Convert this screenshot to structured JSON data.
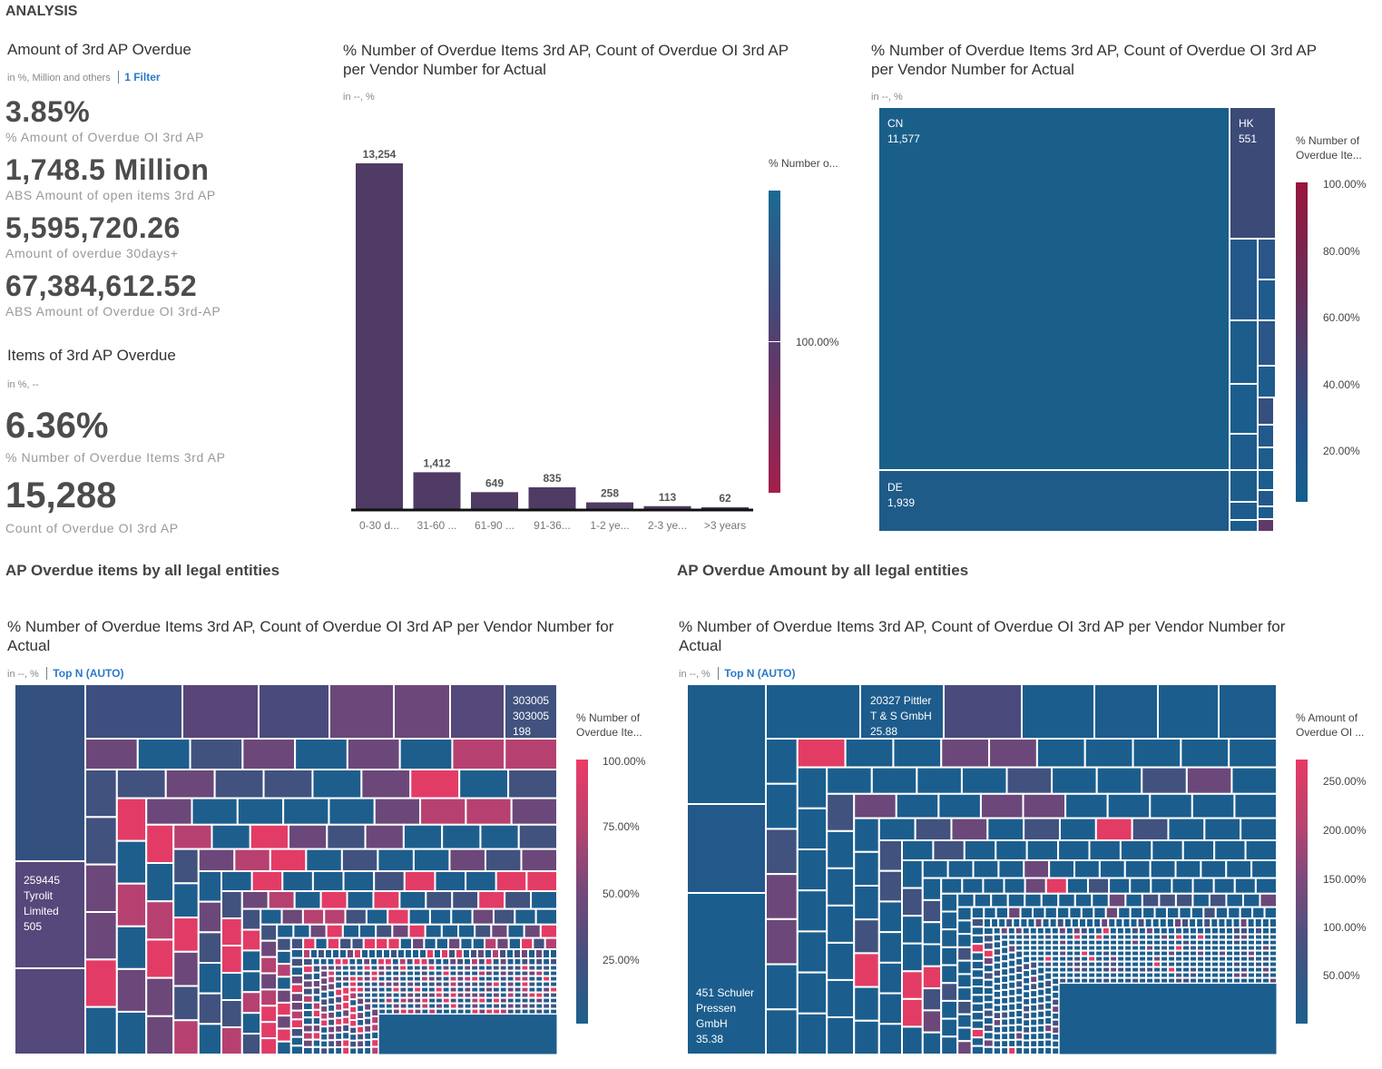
{
  "page": {
    "title": "ANALYSIS"
  },
  "amount_kpi": {
    "title": "Amount of 3rd AP Overdue",
    "subtitle": "in %, Million and others",
    "filter": "1 Filter",
    "items": [
      {
        "value": "3.85%",
        "label": "% Amount of Overdue OI 3rd AP"
      },
      {
        "value": "1,748.5 Million",
        "label": "ABS Amount of open items 3rd AP"
      },
      {
        "value": "5,595,720.26",
        "label": "Amount of overdue 30days+"
      },
      {
        "value": "67,384,612.52",
        "label": "ABS Amount of Overdue OI 3rd-AP"
      }
    ]
  },
  "items_kpi": {
    "title": "Items of 3rd AP Overdue",
    "subtitle": "in %, --",
    "items": [
      {
        "value": "6.36%",
        "label": "% Number of Overdue Items 3rd AP"
      },
      {
        "value": "15,288",
        "label": "Count of Overdue OI 3rd AP"
      }
    ]
  },
  "bar_panel": {
    "title": "% Number of Overdue Items 3rd AP, Count of Overdue OI 3rd AP per Vendor Number for Actual",
    "subtitle": "in --, %",
    "legend_title": "% Number o...",
    "legend_tick": "100.00%"
  },
  "country_panel": {
    "title": "% Number of Overdue Items 3rd AP, Count of Overdue OI 3rd AP per Vendor Number for Actual",
    "subtitle": "in --, %",
    "legend_title": "% Number of Overdue Ite...",
    "legend_ticks": [
      "100.00%",
      "80.00%",
      "60.00%",
      "40.00%",
      "20.00%"
    ]
  },
  "items_section": {
    "title": "AP Overdue items by all legal entities"
  },
  "amount_section": {
    "title": "AP Overdue Amount by all legal entities"
  },
  "items_treemap_panel": {
    "title": "% Number of Overdue Items 3rd AP, Count of Overdue OI 3rd AP per Vendor Number for Actual",
    "subtitle": "in --, %",
    "topn": "Top N (AUTO)",
    "legend_title": "% Number of Overdue Ite...",
    "legend_ticks": [
      "100.00%",
      "75.00%",
      "50.00%",
      "25.00%"
    ],
    "label_big": [
      "259445",
      "Tyrolit",
      "Limited",
      "505"
    ],
    "label_top": [
      "303005",
      "303005",
      "198"
    ]
  },
  "amount_treemap_panel": {
    "title": "% Number of Overdue Items 3rd AP, Count of Overdue OI 3rd AP per Vendor Number for Actual",
    "subtitle": "in --, %",
    "topn": "Top N (AUTO)",
    "legend_title": "% Amount of Overdue OI ...",
    "legend_ticks": [
      "250.00%",
      "200.00%",
      "150.00%",
      "100.00%",
      "50.00%"
    ],
    "label_big": [
      "451 Schuler",
      "Pressen",
      "GmbH",
      "35.38"
    ],
    "label_top": [
      "20327 Pittler",
      "T & S GmbH",
      "25.88"
    ]
  },
  "chart_data": [
    {
      "type": "bar",
      "title": "% Number of Overdue Items 3rd AP, Count of Overdue OI 3rd AP per Vendor Number for Actual",
      "categories": [
        "0-30 d...",
        "31-60 ...",
        "61-90 ...",
        "91-36...",
        "1-2 ye...",
        "2-3 ye...",
        ">3 years"
      ],
      "values": [
        13254,
        1412,
        649,
        835,
        258,
        113,
        62
      ],
      "value_labels": [
        "13,254",
        "1,412",
        "649",
        "835",
        "258",
        "113",
        "62"
      ],
      "color": "#4f3b63"
    },
    {
      "type": "treemap",
      "title": "% Number of Overdue Items 3rd AP, Count of Overdue OI 3rd AP per Vendor Number for Actual",
      "items": [
        {
          "name": "CN",
          "value": 11577,
          "value_label": "11,577",
          "color": "#1a5f8a"
        },
        {
          "name": "DE",
          "value": 1939,
          "value_label": "1,939",
          "color": "#1f5b88"
        },
        {
          "name": "HK",
          "value": 551,
          "value_label": "551",
          "color": "#3c4a78"
        }
      ]
    },
    {
      "type": "treemap",
      "title": "% Number of Overdue Items 3rd AP, Count of Overdue OI 3rd AP per Vendor Number for Actual",
      "items": [
        {
          "name": "259445 Tyrolit Limited",
          "value": 505
        },
        {
          "name": "303005 303005",
          "value": 198
        }
      ]
    },
    {
      "type": "treemap",
      "title": "% Number of Overdue Items 3rd AP, Count of Overdue OI 3rd AP per Vendor Number for Actual",
      "items": [
        {
          "name": "451 Schuler Pressen GmbH",
          "value": 35.38
        },
        {
          "name": "20327 Pittler T & S GmbH",
          "value": 25.88
        }
      ]
    }
  ]
}
